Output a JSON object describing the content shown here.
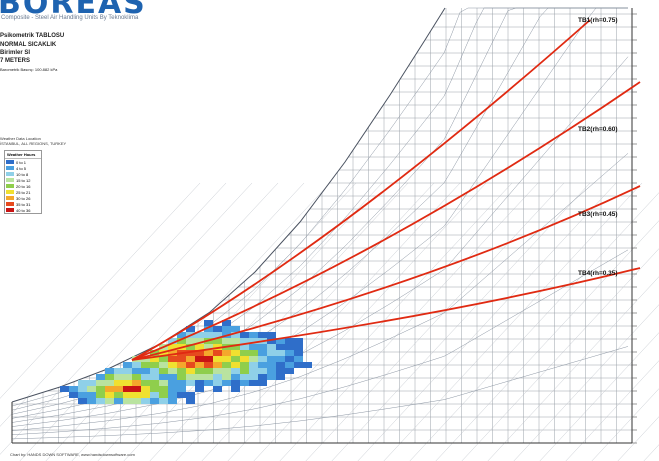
{
  "header": {
    "logo": "BOREAS",
    "subtitle": "Composite - Steel Air Handling Units By Teknoklima",
    "lines": [
      "Psikometrik TABLOSU",
      "NORMAL SICAKLIK",
      "Birimler SI",
      "7 METERS",
      "Barometrik Basınç: 100.882 kPa"
    ],
    "weather_station_label": "Weather Data Location",
    "weather_station_value": "İSTANBUL, ALL REGIONS, TURKEY"
  },
  "legend": {
    "title": "Weather Hours",
    "items": [
      {
        "label": "0 to 1",
        "color": "#2f6ec9"
      },
      {
        "label": "4 to 5",
        "color": "#4aa0e0"
      },
      {
        "label": "10 to 8",
        "color": "#8fd0e8"
      },
      {
        "label": "15 to 12",
        "color": "#b9e3a0"
      },
      {
        "label": "20 to 16",
        "color": "#8fce4c"
      },
      {
        "label": "25 to 21",
        "color": "#f0e030"
      },
      {
        "label": "30 to 26",
        "color": "#f4a82c"
      },
      {
        "label": "35 to 31",
        "color": "#e64a1e"
      },
      {
        "label": "40 to 36",
        "color": "#c81414"
      }
    ]
  },
  "chart_data": {
    "type": "heatmap",
    "title": "Psikometrik TABLOSU",
    "process_lines": [
      {
        "name": "TB1(rh=0.75)",
        "color": "#e02a12"
      },
      {
        "name": "TB2(rh=0.60)",
        "color": "#e02a12"
      },
      {
        "name": "TB3(rh=0.45)",
        "color": "#e02a12"
      },
      {
        "name": "TB4(rh=0.35)",
        "color": "#e02a12"
      }
    ]
  },
  "footer": {
    "text": "Chart by: HANDS DOWN SOFTWARE, www.handsdownsoftware.com"
  }
}
